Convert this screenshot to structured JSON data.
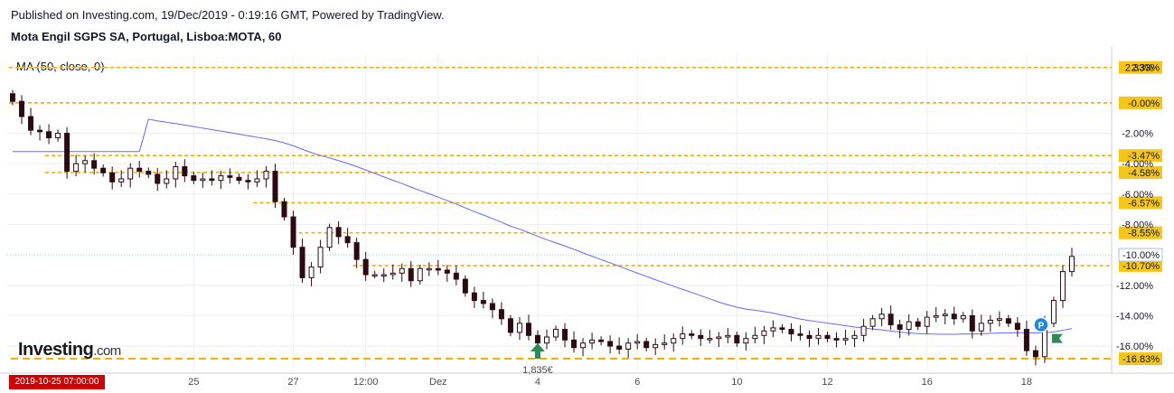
{
  "header": {
    "published": "Published on Investing.com, 19/Dec/2019 - 0:19:16 GMT, Powered by TradingView.",
    "title": "Mota Engil SGPS SA, Portugal, Lisboa:MOTA, 60"
  },
  "indicator": {
    "label": "MA (50, close, 0)"
  },
  "logo": {
    "main": "Investing",
    "suffix": ".com"
  },
  "time_badge": "2019-10-25 07:00:00",
  "price_annotation": "1,835€",
  "colors": {
    "up_candle": "#ffffff",
    "down_candle": "#2b0a12",
    "ma_line": "#6666ff",
    "fib_line": "#f0b000",
    "label_bg": "#f5c518",
    "time_badge": "#d00000",
    "marker_green": "#2e8b57",
    "marker_blue": "#1e88e5"
  },
  "icons": {
    "buy_marker": "up-arrow-icon",
    "position_marker": "p-circle-icon",
    "flag_marker": "flag-icon"
  },
  "chart_data": {
    "type": "candlestick",
    "title": "Mota Engil SGPS SA, Portugal, Lisboa:MOTA, 60",
    "indicator": "MA (50, close, 0)",
    "y_unit": "% from reference",
    "ylim": [
      -17.6,
      3.2
    ],
    "y_ticks": [
      "2.33%",
      "-2.00%",
      "-4.00%",
      "-6.00%",
      "-8.00%",
      "-12.00%",
      "-14.00%",
      "-16.00%"
    ],
    "fib_levels": [
      "2.33%",
      "-0.00%",
      "-3.47%",
      "-4.58%",
      "-6.57%",
      "-8.55%",
      "-10.70%",
      "-16.83%"
    ],
    "fib_values": [
      2.33,
      0.0,
      -3.47,
      -4.58,
      -6.57,
      -8.55,
      -10.7,
      -16.83
    ],
    "current_level": {
      "label": "-10.00%",
      "value": -10.0
    },
    "x_tick_labels": [
      {
        "label": "25",
        "bar": 20
      },
      {
        "label": "27",
        "bar": 31
      },
      {
        "label": "12:00",
        "bar": 39
      },
      {
        "label": "Dez",
        "bar": 47
      },
      {
        "label": "4",
        "bar": 58
      },
      {
        "label": "6",
        "bar": 69
      },
      {
        "label": "10",
        "bar": 80
      },
      {
        "label": "12",
        "bar": 90
      },
      {
        "label": "16",
        "bar": 101
      },
      {
        "label": "18",
        "bar": 112
      }
    ],
    "closes": [
      0.1,
      -0.9,
      -1.8,
      -1.9,
      -2.3,
      -2.0,
      -4.5,
      -4.0,
      -3.8,
      -4.3,
      -4.6,
      -5.2,
      -5.0,
      -4.3,
      -4.5,
      -4.7,
      -5.3,
      -5.0,
      -4.2,
      -4.8,
      -5.1,
      -5.0,
      -5.1,
      -4.8,
      -4.9,
      -5.1,
      -5.2,
      -5.0,
      -4.5,
      -6.5,
      -7.5,
      -9.5,
      -11.5,
      -10.8,
      -9.5,
      -8.2,
      -8.8,
      -9.2,
      -10.3,
      -11.3,
      -11.3,
      -11.3,
      -11.2,
      -10.9,
      -11.7,
      -10.9,
      -10.9,
      -11.0,
      -11.2,
      -11.6,
      -12.5,
      -13.0,
      -13.2,
      -13.6,
      -14.2,
      -15.1,
      -14.5,
      -15.3,
      -15.8,
      -15.4,
      -14.9,
      -15.6,
      -16.1,
      -15.8,
      -15.6,
      -15.7,
      -16.0,
      -16.2,
      -15.8,
      -15.7,
      -16.1,
      -15.9,
      -15.8,
      -15.5,
      -15.2,
      -15.3,
      -15.5,
      -15.5,
      -15.4,
      -15.3,
      -15.8,
      -15.5,
      -15.3,
      -15.0,
      -14.8,
      -14.9,
      -15.2,
      -15.3,
      -15.5,
      -15.3,
      -15.5,
      -15.6,
      -15.5,
      -15.3,
      -14.7,
      -14.2,
      -13.9,
      -14.6,
      -14.9,
      -14.4,
      -14.7,
      -14.1,
      -14.0,
      -13.9,
      -14.2,
      -14.0,
      -15.0,
      -14.5,
      -14.3,
      -14.2,
      -14.5,
      -14.9,
      -16.3,
      -16.7,
      -14.5,
      -13.0,
      -11.1,
      -10.1
    ]
  }
}
